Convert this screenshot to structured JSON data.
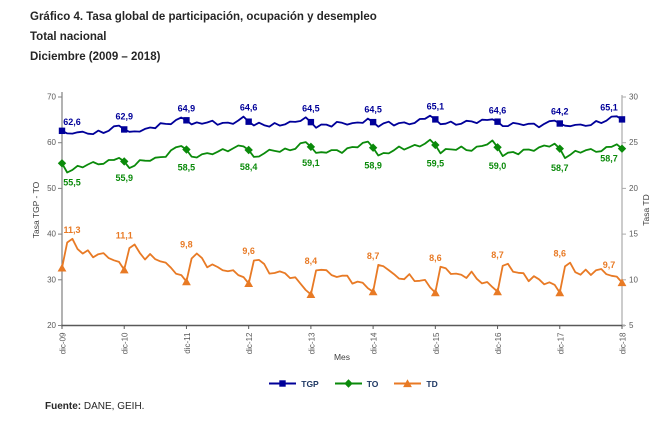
{
  "title": {
    "line1": "Gráfico 4. Tasa global de participación, ocupación y desempleo",
    "line2": "Total nacional",
    "line3": "Diciembre (2009 – 2018)"
  },
  "source": {
    "label": "Fuente:",
    "text": "DANE, GEIH."
  },
  "chart_data": {
    "type": "line",
    "title": "Tasa global de participación, ocupación y desempleo",
    "xlabel": "Mes",
    "categories": [
      "dic-09",
      "dic-10",
      "dic-11",
      "dic-12",
      "dic-13",
      "dic-14",
      "dic-15",
      "dic-16",
      "dic-17",
      "dic-18"
    ],
    "left_axis": {
      "label": "Tasa TGP - TO",
      "range": [
        20,
        70
      ],
      "ticks": [
        20,
        30,
        40,
        50,
        60,
        70
      ]
    },
    "right_axis": {
      "label": "Tasa  TD",
      "range": [
        5,
        30
      ],
      "ticks": [
        5,
        10,
        15,
        20,
        25,
        30
      ]
    },
    "grid": false,
    "legend_position": "bottom",
    "decimal_separator": ",",
    "series": [
      {
        "name": "TGP",
        "axis": "left",
        "color": "#000099",
        "marker": "square",
        "values": [
          62.6,
          62.9,
          64.9,
          64.6,
          64.5,
          64.5,
          65.1,
          64.6,
          64.2,
          65.1
        ]
      },
      {
        "name": "TO",
        "axis": "left",
        "color": "#0a8a0a",
        "marker": "diamond",
        "values": [
          55.5,
          55.9,
          58.5,
          58.4,
          59.1,
          58.9,
          59.5,
          59.0,
          58.7,
          58.7
        ]
      },
      {
        "name": "TD",
        "axis": "right",
        "color": "#e87a25",
        "marker": "triangle",
        "values": [
          11.3,
          11.1,
          9.8,
          9.6,
          8.4,
          8.7,
          8.6,
          8.7,
          8.6,
          9.7
        ]
      }
    ],
    "note": "Monthly lines with labeled December values; TGP and TO read on left axis, TD on right axis"
  }
}
